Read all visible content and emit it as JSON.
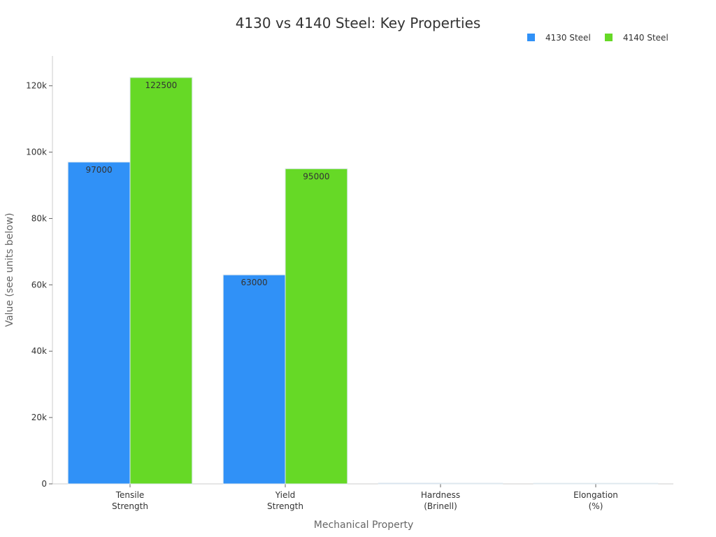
{
  "chart_data": {
    "type": "bar",
    "title": "4130 vs 4140 Steel: Key Properties",
    "xlabel": "Mechanical Property",
    "ylabel": "Value (see units below)",
    "categories": [
      [
        "Tensile",
        "Strength"
      ],
      [
        "Yield",
        "Strength"
      ],
      [
        "Hardness",
        "(Brinell)"
      ],
      [
        "Elongation",
        "(%)"
      ]
    ],
    "series": [
      {
        "name": "4130 Steel",
        "color": "#3091f7",
        "values": [
          97000,
          63000,
          217,
          25.5
        ],
        "data_labels": [
          "97000",
          "63000",
          "",
          ""
        ]
      },
      {
        "name": "4140 Steel",
        "color": "#66d926",
        "values": [
          122500,
          95000,
          197,
          25.7
        ],
        "data_labels": [
          "122500",
          "95000",
          "",
          ""
        ]
      }
    ],
    "ylim": [
      0,
      129000
    ],
    "y_ticks": [
      {
        "value": 0,
        "label": "0"
      },
      {
        "value": 20000,
        "label": "20k"
      },
      {
        "value": 40000,
        "label": "40k"
      },
      {
        "value": 60000,
        "label": "60k"
      },
      {
        "value": 80000,
        "label": "80k"
      },
      {
        "value": 100000,
        "label": "100k"
      },
      {
        "value": 120000,
        "label": "120k"
      }
    ],
    "grid": false,
    "legend_position": "top-right"
  }
}
